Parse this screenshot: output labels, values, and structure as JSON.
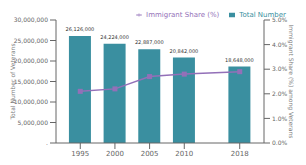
{
  "chart_data": {
    "type": "bar",
    "x": [
      1995,
      2000,
      2005,
      2010,
      2018
    ],
    "xlim": [
      1991.5,
      2021.5
    ],
    "xticks": [
      1995,
      2000,
      2005,
      2010,
      2018
    ],
    "ylabel": "Total Number of Veterans",
    "ylim": [
      0,
      30000000
    ],
    "yticks": [
      {
        "value": 0,
        "label": "."
      },
      {
        "value": 5000000,
        "label": "5,000,000"
      },
      {
        "value": 10000000,
        "label": "10,000,000"
      },
      {
        "value": 15000000,
        "label": "15,000,000"
      },
      {
        "value": 20000000,
        "label": "20,000,000"
      },
      {
        "value": 25000000,
        "label": "25,000,000"
      },
      {
        "value": 30000000,
        "label": "30,000,000"
      }
    ],
    "y2label": "Immigrant Share (%) among Veterans",
    "y2lim": [
      0.0,
      5.0
    ],
    "y2ticks": [
      {
        "value": 0.0,
        "label": "0.0%"
      },
      {
        "value": 1.0,
        "label": "1.0%"
      },
      {
        "value": 2.0,
        "label": "2.0%"
      },
      {
        "value": 3.0,
        "label": "3.0%"
      },
      {
        "value": 4.0,
        "label": "4.0%"
      },
      {
        "value": 5.0,
        "label": "5.0%"
      }
    ],
    "legend": "upper right",
    "grid": false,
    "series": [
      {
        "name": "Total Number",
        "type": "bar",
        "color": "#3a8fa0",
        "values": [
          26126000,
          24224000,
          22887000,
          20842000,
          18648000
        ],
        "data_labels": true,
        "value_labels": [
          "26,126,000",
          "24,224,000",
          "22,887,000",
          "20,842,000",
          "18,648,000"
        ]
      },
      {
        "name": "Immigrant Share (%)",
        "type": "line",
        "color": "#9370b8",
        "marker": "square",
        "axis": "y2",
        "values": [
          2.1,
          2.2,
          2.7,
          2.8,
          2.9
        ]
      }
    ]
  }
}
